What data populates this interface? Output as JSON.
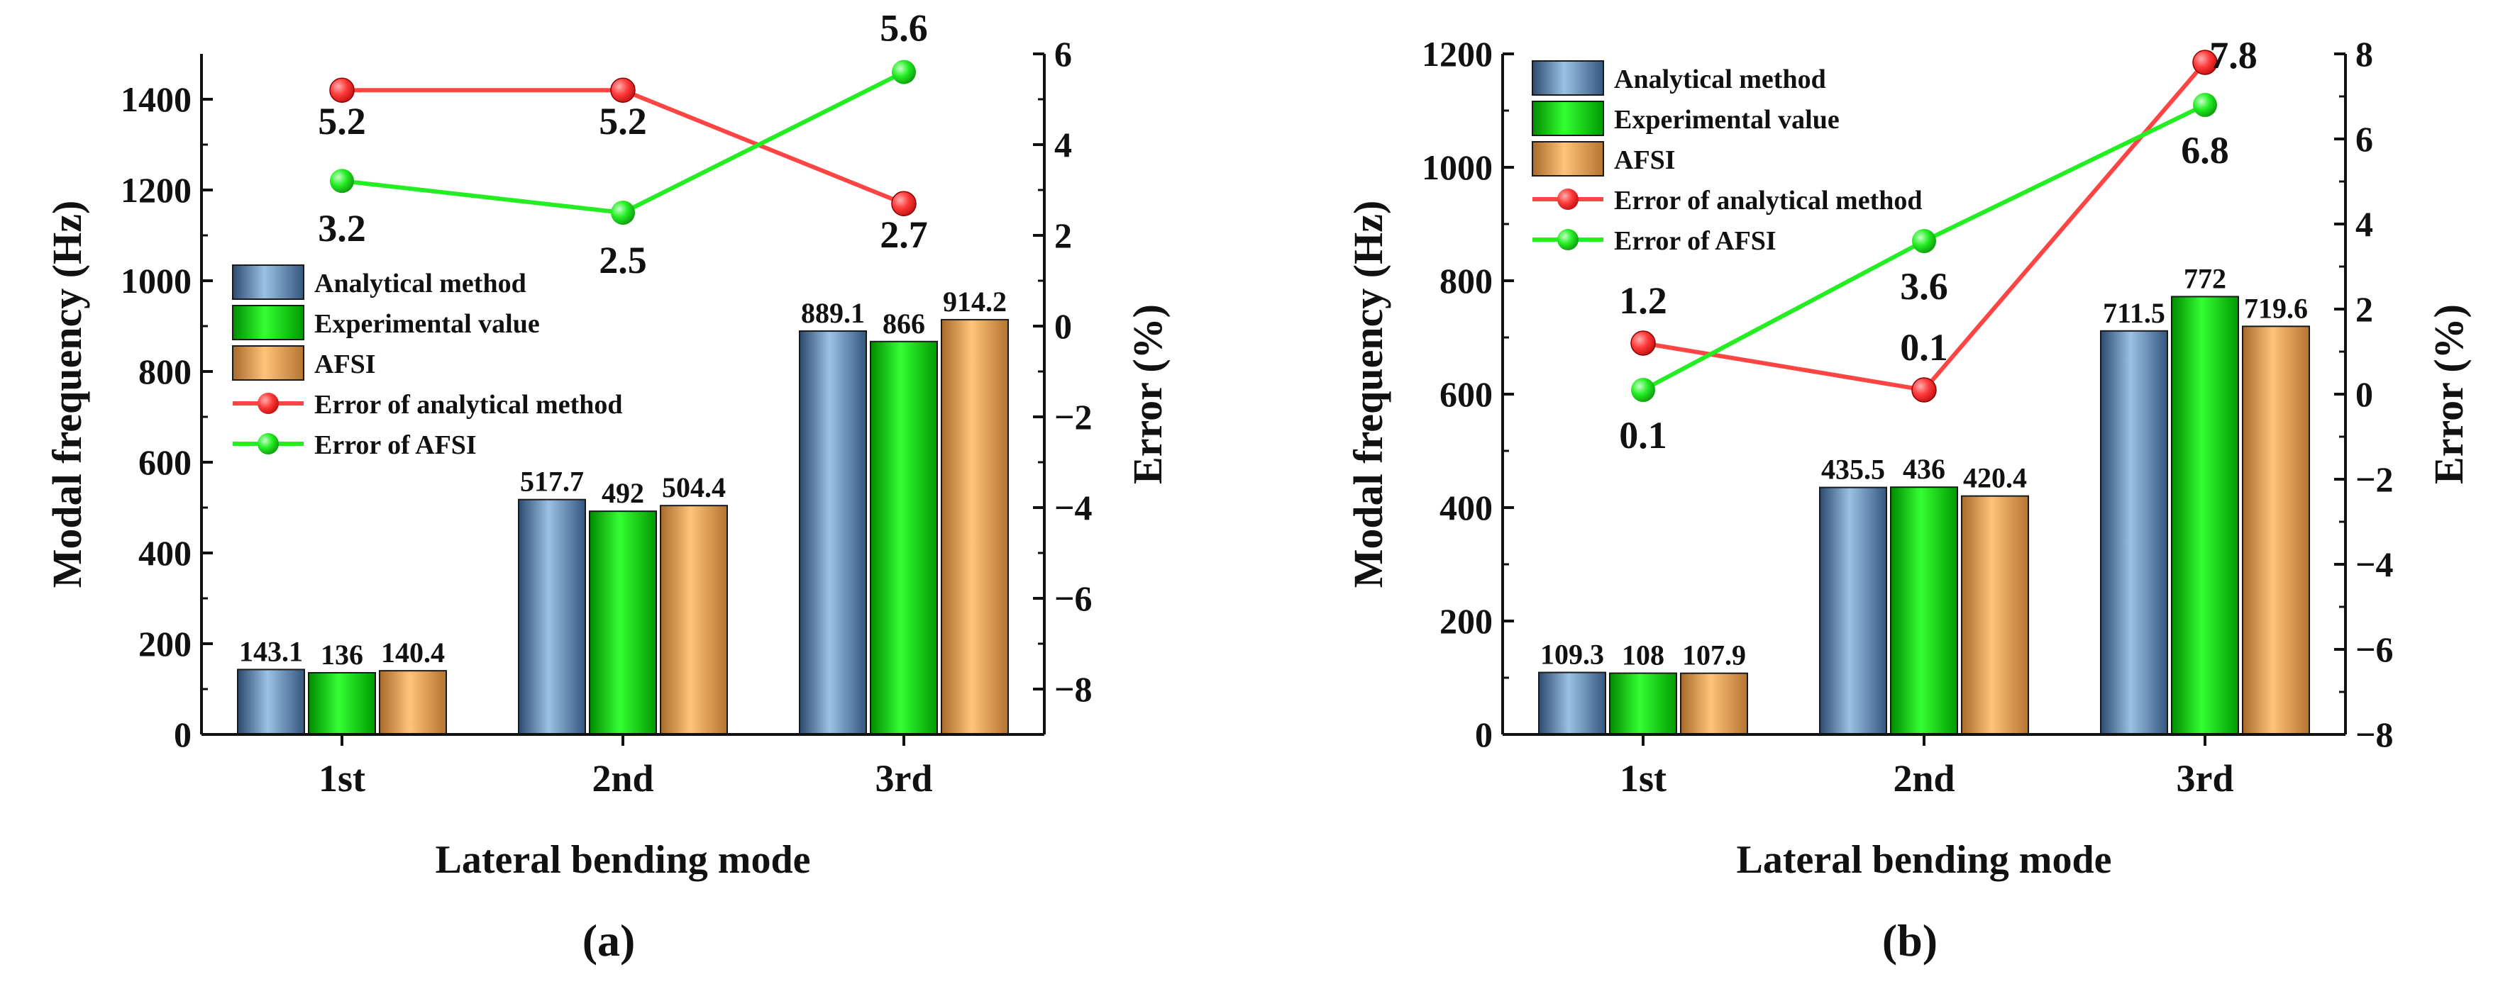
{
  "chart_data": [
    {
      "type": "bar",
      "panel_label": "(a)",
      "xlabel": "Lateral bending mode",
      "ylabel": "Modal frequency (Hz)",
      "y2label": "Error (%)",
      "categories": [
        "1st",
        "2nd",
        "3rd"
      ],
      "ylim": [
        0,
        1500
      ],
      "yticks": [
        0,
        200,
        400,
        600,
        800,
        1000,
        1200,
        1400
      ],
      "y2lim": [
        -9,
        6
      ],
      "y2ticks": [
        -8,
        -6,
        -4,
        -2,
        0,
        2,
        4,
        6
      ],
      "series": [
        {
          "name": "Analytical method",
          "values": [
            143.1,
            517.7,
            889.1
          ],
          "labels": [
            "143.1",
            "517.7",
            "889.1"
          ]
        },
        {
          "name": "Experimental value",
          "values": [
            136,
            492,
            866
          ],
          "labels": [
            "136",
            "492",
            "866"
          ]
        },
        {
          "name": "AFSI",
          "values": [
            140.4,
            504.4,
            914.2
          ],
          "labels": [
            "140.4",
            "504.4",
            "914.2"
          ]
        }
      ],
      "line_series": [
        {
          "name": "Error of analytical method",
          "values": [
            5.2,
            5.2,
            2.7
          ],
          "labels": [
            "5.2",
            "5.2",
            "2.7"
          ]
        },
        {
          "name": "Error of AFSI",
          "values": [
            3.2,
            2.5,
            5.6
          ],
          "labels": [
            "3.2",
            "2.5",
            "5.6"
          ]
        }
      ]
    },
    {
      "type": "bar",
      "panel_label": "(b)",
      "xlabel": "Lateral bending mode",
      "ylabel": "Modal frequency (Hz)",
      "y2label": "Error (%)",
      "categories": [
        "1st",
        "2nd",
        "3rd"
      ],
      "ylim": [
        0,
        1200
      ],
      "yticks": [
        0,
        200,
        400,
        600,
        800,
        1000,
        1200
      ],
      "y2lim": [
        -8,
        8
      ],
      "y2ticks": [
        -8,
        -6,
        -4,
        -2,
        0,
        2,
        4,
        6,
        8
      ],
      "series": [
        {
          "name": "Analytical method",
          "values": [
            109.3,
            435.5,
            711.5
          ],
          "labels": [
            "109.3",
            "435.5",
            "711.5"
          ]
        },
        {
          "name": "Experimental value",
          "values": [
            108,
            436,
            772
          ],
          "labels": [
            "108",
            "436",
            "772"
          ]
        },
        {
          "name": "AFSI",
          "values": [
            107.9,
            420.4,
            719.6
          ],
          "labels": [
            "107.9",
            "420.4",
            "719.6"
          ]
        }
      ],
      "line_series": [
        {
          "name": "Error of analytical method",
          "values": [
            1.2,
            0.1,
            7.8
          ],
          "labels": [
            "1.2",
            "0.1",
            "7.8"
          ]
        },
        {
          "name": "Error of AFSI",
          "values": [
            0.1,
            3.6,
            6.8
          ],
          "labels": [
            "0.1",
            "3.6",
            "6.8"
          ]
        }
      ]
    }
  ],
  "colors": {
    "analytical": "#6b8fb5",
    "experimental": "#00dd00",
    "afsi": "#f0a050",
    "error_analytical": "#ff4444",
    "error_afsi": "#22ee22",
    "axis": "#111111"
  }
}
